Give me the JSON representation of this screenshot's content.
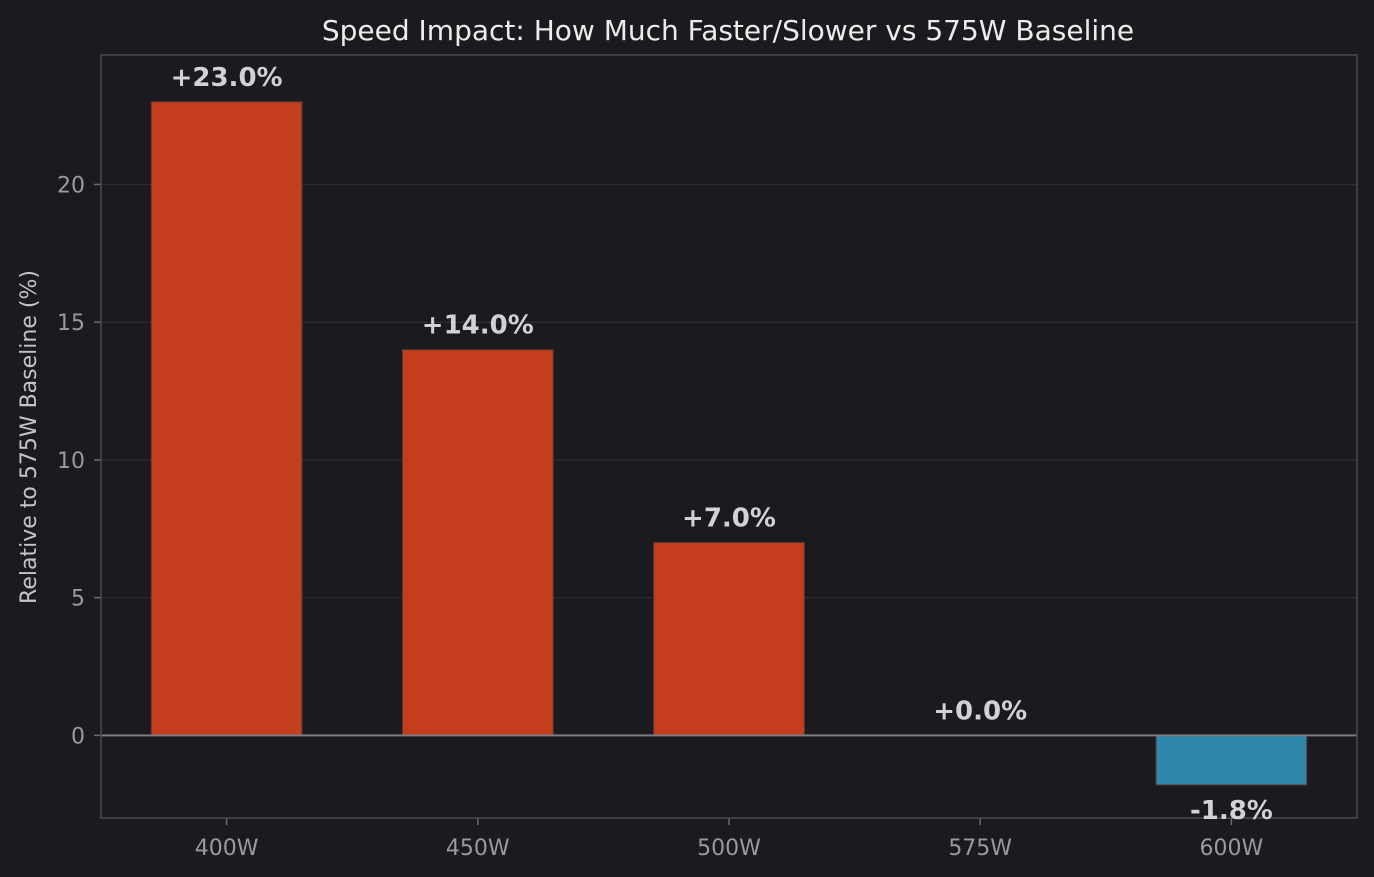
{
  "chart_data": {
    "type": "bar",
    "title": "Speed Impact: How Much Faster/Slower vs 575W Baseline",
    "xlabel": "",
    "ylabel": "Relative to 575W Baseline (%)",
    "categories": [
      "400W",
      "450W",
      "500W",
      "575W",
      "600W"
    ],
    "values": [
      23.0,
      14.0,
      7.0,
      0.0,
      -1.8
    ],
    "value_labels": [
      "+23.0%",
      "+14.0%",
      "+7.0%",
      "+0.0%",
      "-1.8%"
    ],
    "ylim": [
      -3.0,
      24.7
    ],
    "yticks": [
      0,
      5,
      10,
      15,
      20
    ],
    "ytick_labels": [
      "0",
      "5",
      "10",
      "15",
      "20"
    ],
    "grid": true,
    "legend": "none",
    "colors": {
      "positive": "#c43d1c",
      "negative": "#2e86ab",
      "background": "#1b1b1f",
      "bar_edge": "#5a3a32"
    }
  }
}
